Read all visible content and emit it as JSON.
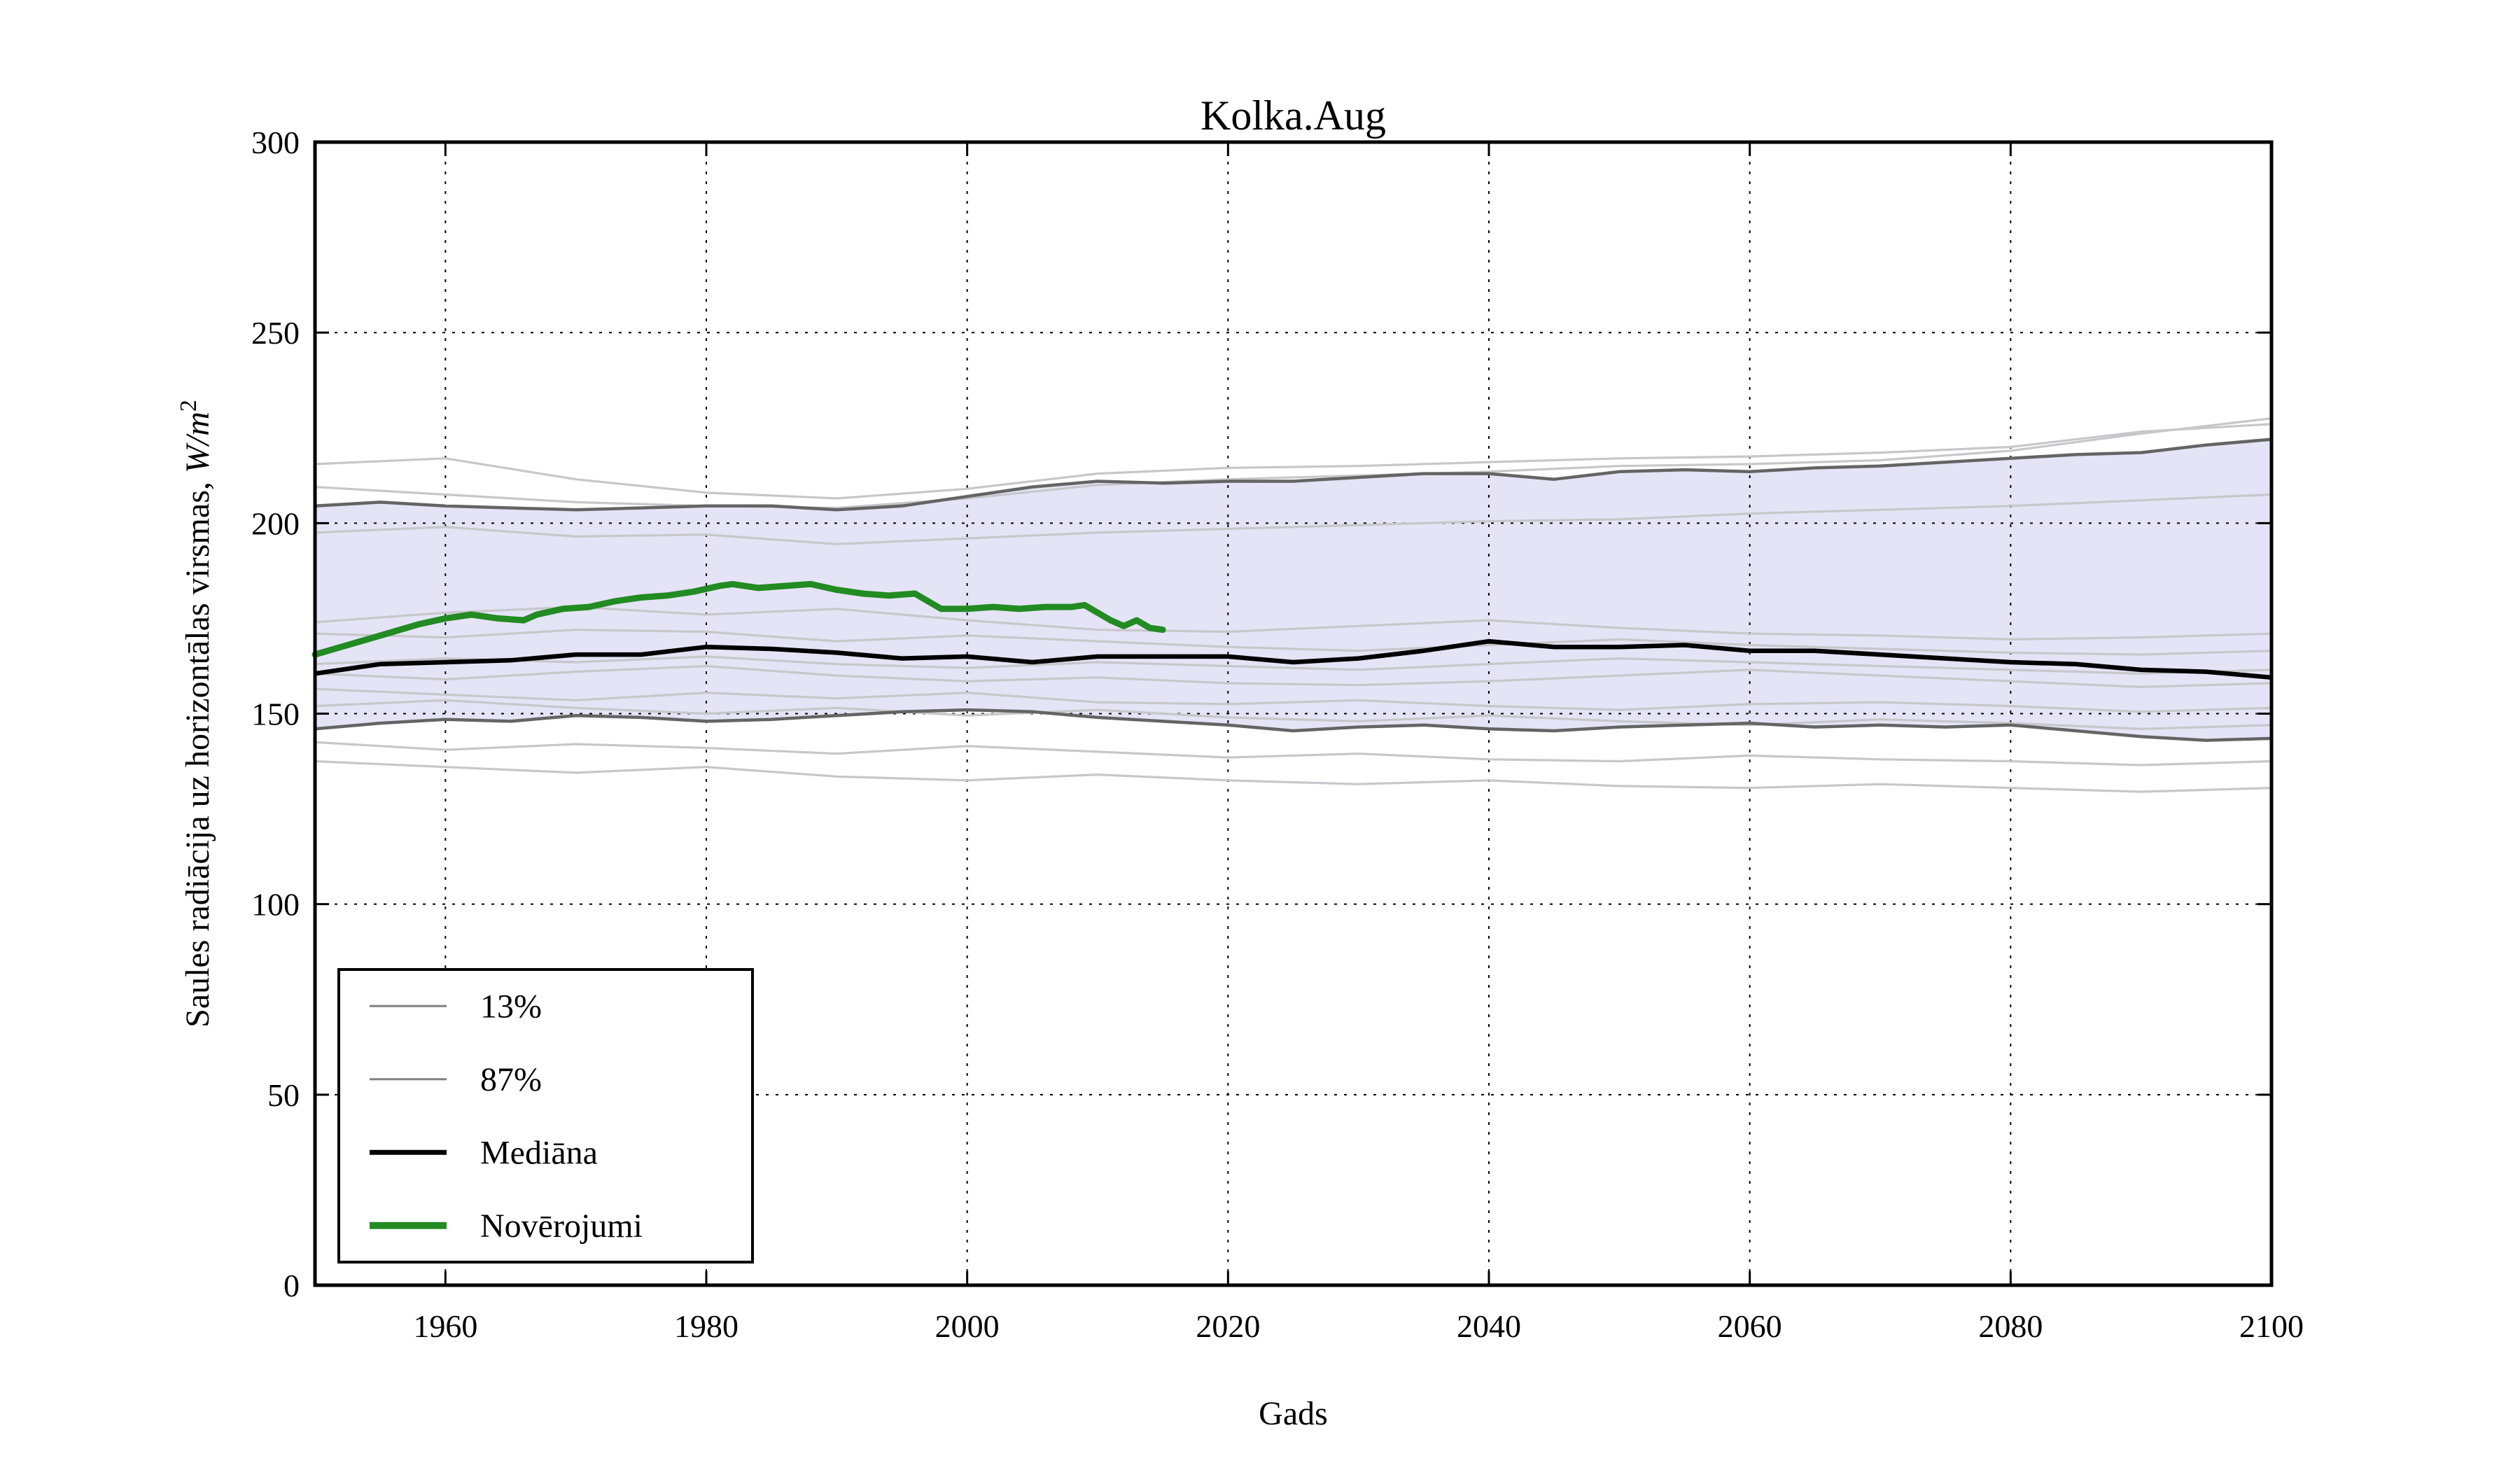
{
  "title": "Kolka.Aug",
  "axes": {
    "xlabel": "Gads",
    "ylabel_text": "Saules radiācija uz horizontālas virsmas, ",
    "ylabel_math": "W/m",
    "ylabel_sup": "2"
  },
  "legend": {
    "entries": [
      {
        "label": "13%",
        "color": "#808080",
        "line_width": 3
      },
      {
        "label": "87%",
        "color": "#808080",
        "line_width": 3
      },
      {
        "label": "Mediāna",
        "color": "#000000",
        "line_width": 7
      },
      {
        "label": "Novērojumi",
        "color": "#228B22",
        "line_width": 10
      }
    ]
  },
  "colors": {
    "band_fill": "#e4e4f6",
    "percentile_line": "#646464",
    "ensemble_line": "#c7c7cb",
    "median_line": "#000000",
    "observations_line": "#228B22",
    "grid_line": "#000000",
    "spine": "#000000"
  },
  "chart_data": {
    "type": "line",
    "title": "Kolka.Aug",
    "xlabel": "Gads",
    "ylabel": "Saules radiācija uz horizontālas virsmas, W/m^2",
    "xlim": [
      1950,
      2100
    ],
    "ylim": [
      0,
      300
    ],
    "xticks": [
      1960,
      1980,
      2000,
      2020,
      2040,
      2060,
      2080,
      2100
    ],
    "yticks": [
      0,
      50,
      100,
      150,
      200,
      250,
      300
    ],
    "grid": true,
    "legend_position": "lower left",
    "band": {
      "years": [
        1950,
        1955,
        1960,
        1965,
        1970,
        1975,
        1980,
        1985,
        1990,
        1995,
        2000,
        2005,
        2010,
        2015,
        2020,
        2025,
        2030,
        2035,
        2040,
        2045,
        2050,
        2055,
        2060,
        2065,
        2070,
        2075,
        2080,
        2085,
        2090,
        2095,
        2100
      ],
      "upper_87": [
        204.5,
        205.5,
        204.5,
        204,
        203.5,
        204,
        204.5,
        204.5,
        203.5,
        204.5,
        207,
        209.5,
        211,
        210.5,
        211,
        211,
        212,
        213,
        213,
        211.5,
        213.5,
        214,
        213.5,
        214.5,
        215,
        216,
        217,
        218,
        218.5,
        220.5,
        222
      ],
      "lower_13": [
        146,
        147.5,
        148.5,
        148,
        149.5,
        149,
        148,
        148.5,
        149.5,
        150.5,
        151,
        150.5,
        149,
        148,
        147,
        145.5,
        146.5,
        147,
        146,
        145.5,
        146.5,
        147,
        147.5,
        146.5,
        147,
        146.5,
        147,
        145.5,
        144,
        143,
        143.5
      ]
    },
    "series": [
      {
        "name": "Mediāna",
        "years": [
          1950,
          1955,
          1960,
          1965,
          1970,
          1975,
          1980,
          1985,
          1990,
          1995,
          2000,
          2005,
          2010,
          2015,
          2020,
          2025,
          2030,
          2035,
          2040,
          2045,
          2050,
          2055,
          2060,
          2065,
          2070,
          2075,
          2080,
          2085,
          2090,
          2095,
          2100
        ],
        "values": [
          160.5,
          163,
          163.5,
          164,
          165.5,
          165.5,
          167.5,
          167,
          166,
          164.5,
          165,
          163.5,
          165,
          165,
          165,
          163.5,
          164.5,
          166.5,
          169,
          167.5,
          167.5,
          168,
          166.5,
          166.5,
          165.5,
          164.5,
          163.5,
          163,
          161.5,
          161,
          159.5
        ]
      },
      {
        "name": "Novērojumi",
        "years": [
          1950,
          1952,
          1954,
          1956,
          1958,
          1960,
          1962,
          1964,
          1966,
          1967,
          1969,
          1971,
          1973,
          1975,
          1977,
          1979,
          1981,
          1982,
          1984,
          1986,
          1988,
          1990,
          1992,
          1994,
          1996,
          1998,
          2000,
          2002,
          2004,
          2006,
          2008,
          2009,
          2010,
          2011,
          2012,
          2013,
          2014,
          2015
        ],
        "values": [
          165.5,
          167.5,
          169.5,
          171.5,
          173.5,
          175,
          176,
          175,
          174.5,
          176,
          177.5,
          178,
          179.5,
          180.5,
          181,
          182,
          183.5,
          184,
          183,
          183.5,
          184,
          182.5,
          181.5,
          181,
          181.5,
          177.5,
          177.5,
          178,
          177.5,
          178,
          178,
          178.5,
          176.5,
          174.5,
          173,
          174.5,
          172.5,
          172
        ]
      }
    ],
    "ensemble": {
      "years": [
        1950,
        1960,
        1970,
        1980,
        1990,
        2000,
        2010,
        2020,
        2030,
        2040,
        2050,
        2060,
        2070,
        2080,
        2090,
        2100
      ],
      "members": [
        [
          215.5,
          217,
          211.5,
          208,
          206.5,
          209,
          213,
          214.5,
          215,
          216,
          217,
          217.5,
          218.5,
          220,
          224,
          226
        ],
        [
          209.5,
          207.5,
          205.5,
          204.5,
          204,
          206.5,
          210,
          211.5,
          212.5,
          213.5,
          215,
          215.5,
          216.5,
          219,
          223.5,
          227.5
        ],
        [
          197.5,
          199,
          196.5,
          197,
          194.5,
          196,
          197.5,
          198.5,
          199.5,
          200.5,
          201,
          202.5,
          203.5,
          204.5,
          206,
          207.5
        ],
        [
          174,
          176.5,
          178,
          176,
          177.5,
          174.5,
          172,
          171.5,
          173,
          174.5,
          172.5,
          171,
          170.5,
          169.5,
          170,
          171
        ],
        [
          171,
          170,
          172,
          171.5,
          169,
          170.5,
          169,
          167.5,
          166.5,
          168,
          169.5,
          168,
          167,
          166,
          165.5,
          166.5
        ],
        [
          163,
          164.5,
          163.5,
          165,
          163,
          162,
          163.5,
          162.5,
          161.5,
          163,
          164.5,
          163.5,
          162.5,
          161.5,
          160.5,
          161.5
        ],
        [
          160.5,
          159,
          161,
          162.5,
          160,
          158.5,
          159.5,
          158,
          157.5,
          158.5,
          160,
          161.5,
          160,
          158.5,
          157,
          158
        ],
        [
          156.5,
          155,
          153.5,
          155.5,
          154,
          155.5,
          153,
          152.5,
          153.5,
          152,
          151,
          152.5,
          153,
          152,
          150.5,
          151.5
        ],
        [
          152,
          153.5,
          151.5,
          150,
          151.5,
          149.5,
          151,
          149,
          148,
          149.5,
          148,
          147,
          148.5,
          147.5,
          146,
          147
        ],
        [
          142.5,
          140.5,
          142,
          141,
          139.5,
          141.5,
          140,
          138.5,
          139.5,
          138,
          137.5,
          139,
          138,
          137.5,
          136.5,
          137.5
        ],
        [
          137.5,
          136,
          134.5,
          136,
          133.5,
          132.5,
          134,
          132.5,
          131.5,
          132.5,
          131,
          130.5,
          131.5,
          130.5,
          129.5,
          130.5
        ]
      ]
    }
  }
}
